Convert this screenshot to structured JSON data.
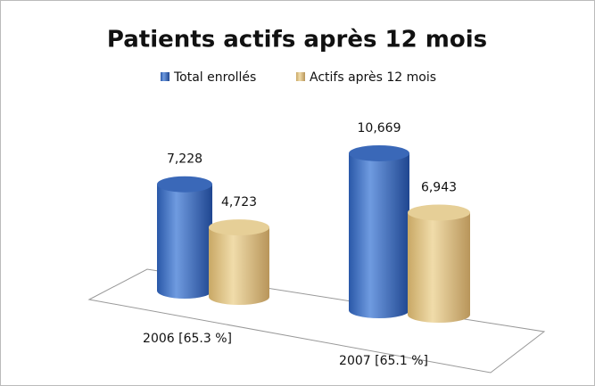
{
  "chart_data": {
    "type": "bar",
    "title": "Patients actifs après 12 mois",
    "categories": [
      "2006 [65.3 %]",
      "2007 [65.1 %]"
    ],
    "series": [
      {
        "name": "Total enrollés",
        "color": "#3f6fc0",
        "values": [
          7228,
          10669
        ],
        "value_labels": [
          "7,228",
          "10,669"
        ]
      },
      {
        "name": "Actifs après 12 mois",
        "color": "#dcc08a",
        "values": [
          4723,
          6943
        ],
        "value_labels": [
          "4,723",
          "6,943"
        ]
      }
    ]
  }
}
